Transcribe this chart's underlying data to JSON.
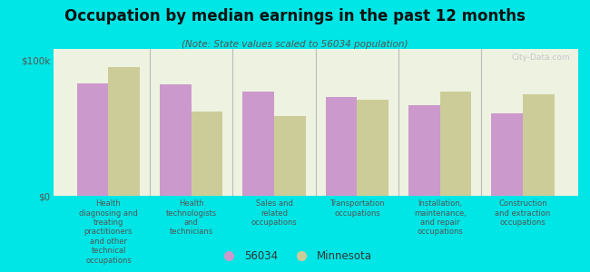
{
  "title": "Occupation by median earnings in the past 12 months",
  "subtitle": "(Note: State values scaled to 56034 population)",
  "categories": [
    "Health\ndiagnosing and\ntreating\npractitioners\nand other\ntechnical\noccupations",
    "Health\ntechnologists\nand\ntechnicians",
    "Sales and\nrelated\noccupations",
    "Transportation\noccupations",
    "Installation,\nmaintenance,\nand repair\noccupations",
    "Construction\nand extraction\noccupations"
  ],
  "values_56034": [
    83000,
    82000,
    77000,
    73000,
    67000,
    61000
  ],
  "values_mn": [
    95000,
    62000,
    59000,
    71000,
    77000,
    75000
  ],
  "bar_color_56034": "#cc99cc",
  "bar_color_mn": "#cccc99",
  "background_color": "#00e5e5",
  "plot_bg_color": "#eef2e0",
  "ylabel_ticks": [
    "$0",
    "$100k"
  ],
  "yticks": [
    0,
    100000
  ],
  "ylim": [
    0,
    108000
  ],
  "legend_label_56034": "56034",
  "legend_label_mn": "Minnesota",
  "watermark": "City-Data.com"
}
